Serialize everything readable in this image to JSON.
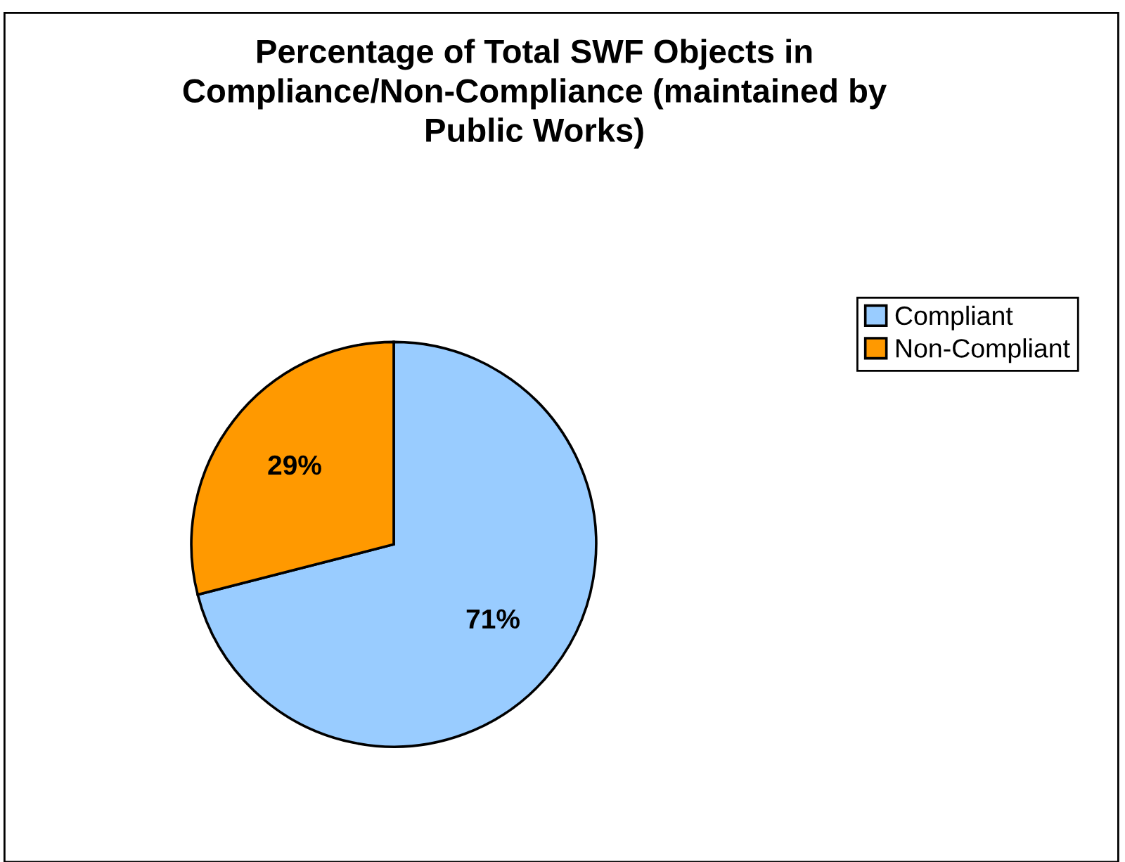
{
  "chart_data": {
    "type": "pie",
    "title": "Percentage of Total SWF Objects in\nCompliance/Non-Compliance (maintained by\nPublic Works)",
    "categories": [
      "Compliant",
      "Non-Compliant"
    ],
    "values": [
      71,
      29
    ],
    "colors": [
      "#99ccff",
      "#ff9900"
    ],
    "value_labels": [
      "71%",
      "29%"
    ],
    "legend": "right"
  }
}
